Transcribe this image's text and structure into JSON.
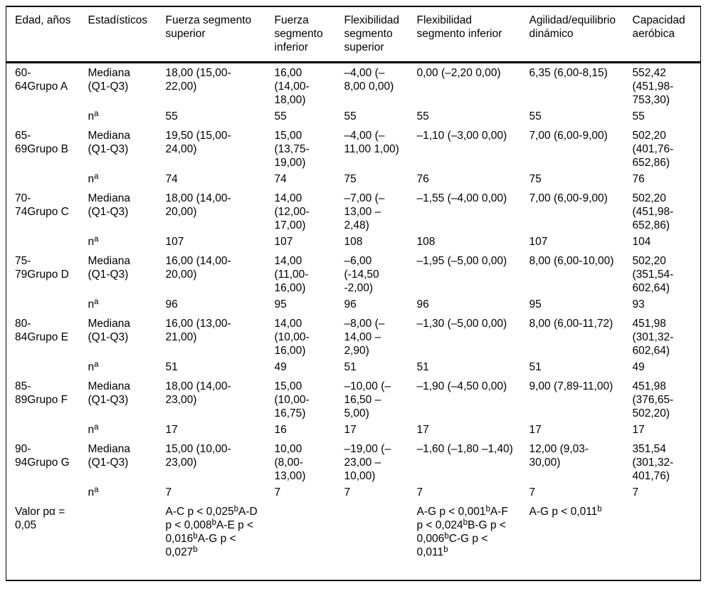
{
  "page": {
    "background": "#ffffff",
    "text_color": "#000000",
    "rule_color": "#000000"
  },
  "table": {
    "columns": [
      "Edad, años",
      "Estadísticos",
      "Fuerza segmento superior",
      "Fuerza segmento inferior",
      "Flexibilidad segmento superior",
      "Flexibilidad segmento inferior",
      "Agilidad/equilibrio dinámico",
      "Capacidad aeróbica"
    ],
    "stat_labels": {
      "median": "Mediana (Q1-Q3)",
      "n": "nᵃ"
    },
    "groups": [
      {
        "age": "60-64Grupo A",
        "median": [
          "18,00 (15,00-22,00)",
          "16,00 (14,00-18,00)",
          "–4,00 (–8,00 0,00)",
          "0,00 (–2,20 0,00)",
          "6,35 (6,00-8,15)",
          "552,42 (451,98-753,30)"
        ],
        "n": [
          "55",
          "55",
          "55",
          "55",
          "55",
          "55"
        ]
      },
      {
        "age": "65-69Grupo B",
        "median": [
          "19,50 (15,00-24,00)",
          "15,00 (13,75-19,00)",
          "–4,00 (–11,00 1,00)",
          "–1,10 (–3,00 0,00)",
          "7,00 (6,00-9,00)",
          "502,20 (401,76-652,86)"
        ],
        "n": [
          "74",
          "74",
          "75",
          "76",
          "75",
          "76"
        ]
      },
      {
        "age": "70-74Grupo C",
        "median": [
          "18,00 (14,00-20,00)",
          "14,00 (12,00-17,00)",
          "–7,00 (–13,00 –2,48)",
          "–1,55 (–4,00 0,00)",
          "7,00 (6,00-9,00)",
          "502,20 (451,98-652,86)"
        ],
        "n": [
          "107",
          "107",
          "108",
          "108",
          "107",
          "104"
        ]
      },
      {
        "age": "75-79Grupo D",
        "median": [
          "16,00 (14,00-20,00)",
          "14,00 (11,00-16,00)",
          "–6,00 (-14,50 -2,00)",
          "–1,95 (–5,00 0,00)",
          "8,00 (6,00-10,00)",
          "502,20 (351,54-602,64)"
        ],
        "n": [
          "96",
          "95",
          "96",
          "96",
          "95",
          "93"
        ]
      },
      {
        "age": "80-84Grupo E",
        "median": [
          "16,00 (13,00-21,00)",
          "14,00 (10,00-16,00)",
          "–8,00 (–14,00 –2,90)",
          "–1,30 (–5,00 0,00)",
          "8,00 (6,00-11,72)",
          "451,98 (301,32-602,64)"
        ],
        "n": [
          "51",
          "49",
          "51",
          "51",
          "51",
          "49"
        ]
      },
      {
        "age": "85-89Grupo F",
        "median": [
          "18,00 (14,00-23,00)",
          "15,00 (10,00-16,75)",
          "–10,00 (–16,50 –5,00)",
          "–1,90 (–4,50 0,00)",
          "9,00 (7,89-11,00)",
          "451,98 (376,65-502,20)"
        ],
        "n": [
          "17",
          "16",
          "17",
          "17",
          "17",
          "17"
        ]
      },
      {
        "age": "90-94Grupo G",
        "median": [
          "15,00 (10,00-23,00)",
          "10,00 (8,00-13,00)",
          "–19,00 (–23,00 –10,00)",
          "–1,60 (–1,80 –1,40)",
          "12,00 (9,03-30,00)",
          "351,54 (301,32-401,76)"
        ],
        "n": [
          "7",
          "7",
          "7",
          "7",
          "7",
          "7"
        ]
      }
    ],
    "p_row": {
      "label": "Valor pα = 0,05",
      "cells": [
        "A-C p < 0,025ᵇA-D p < 0,008ᵇA-E p < 0,016ᵇA-G p < 0,027ᵇ",
        "",
        "",
        "A-G p < 0,001ᵇA-F p < 0,024ᵇB-G p < 0,006ᵇC-G p < 0,011ᵇ",
        "A-G p < 0,011ᵇ",
        ""
      ]
    }
  }
}
